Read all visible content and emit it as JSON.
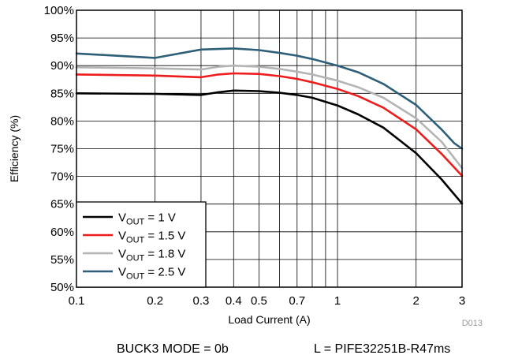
{
  "chart_data": {
    "type": "line",
    "x_scale": "log",
    "xlabel": "Load Current (A)",
    "ylabel": "Efficiency (%)",
    "xlim": [
      0.1,
      3
    ],
    "ylim": [
      50,
      100
    ],
    "x_ticks": [
      0.1,
      0.2,
      0.3,
      0.4,
      0.5,
      0.7,
      1,
      2,
      3
    ],
    "x_tick_labels": [
      "0.1",
      "0.2",
      "0.3",
      "0.4",
      "0.5",
      "0.7",
      "1",
      "2",
      "3"
    ],
    "x_minor_grid": [
      0.6,
      0.8,
      0.9
    ],
    "y_ticks": [
      50,
      55,
      60,
      65,
      70,
      75,
      80,
      85,
      90,
      95,
      100
    ],
    "y_tick_labels": [
      "50%",
      "55%",
      "60%",
      "65%",
      "70%",
      "75%",
      "80%",
      "85%",
      "90%",
      "95%",
      "100%"
    ],
    "grid": true,
    "legend_position": "bottom-left",
    "series": [
      {
        "name_main": "V",
        "name_sub": "OUT",
        "name_rest": " = 1 V",
        "color": "#000000",
        "x": [
          0.1,
          0.2,
          0.3,
          0.35,
          0.4,
          0.5,
          0.6,
          0.7,
          0.8,
          1.0,
          1.2,
          1.5,
          2.0,
          2.5,
          3.0
        ],
        "y": [
          85.0,
          84.9,
          84.7,
          85.2,
          85.5,
          85.4,
          85.1,
          84.7,
          84.2,
          82.8,
          81.2,
          78.8,
          74.2,
          69.5,
          65.1
        ]
      },
      {
        "name_main": "V",
        "name_sub": "OUT",
        "name_rest": " = 1.5 V",
        "color": "#ee1c1c",
        "x": [
          0.1,
          0.2,
          0.3,
          0.35,
          0.4,
          0.5,
          0.6,
          0.7,
          0.8,
          1.0,
          1.2,
          1.5,
          2.0,
          2.5,
          3.0
        ],
        "y": [
          88.4,
          88.2,
          87.9,
          88.4,
          88.6,
          88.5,
          88.1,
          87.6,
          87.0,
          85.8,
          84.5,
          82.4,
          78.5,
          74.1,
          70.1
        ]
      },
      {
        "name_main": "V",
        "name_sub": "OUT",
        "name_rest": " = 1.8 V",
        "color": "#b4b4b4",
        "x": [
          0.1,
          0.2,
          0.3,
          0.35,
          0.4,
          0.5,
          0.6,
          0.7,
          0.8,
          1.0,
          1.2,
          1.5,
          2.0,
          2.5,
          3.0
        ],
        "y": [
          89.7,
          89.5,
          89.3,
          89.8,
          90.0,
          89.8,
          89.4,
          88.9,
          88.4,
          87.3,
          86.1,
          84.2,
          80.5,
          76.3,
          71.5
        ]
      },
      {
        "name_main": "V",
        "name_sub": "OUT",
        "name_rest": " = 2.5 V",
        "color": "#2e5f78",
        "x": [
          0.1,
          0.2,
          0.3,
          0.35,
          0.4,
          0.5,
          0.6,
          0.7,
          0.8,
          1.0,
          1.2,
          1.5,
          2.0,
          2.5,
          2.8,
          3.0
        ],
        "y": [
          92.2,
          91.4,
          92.9,
          93.0,
          93.1,
          92.8,
          92.3,
          91.8,
          91.2,
          90.0,
          88.8,
          86.7,
          82.9,
          78.5,
          76.0,
          75.0
        ]
      }
    ],
    "id_label": "D013",
    "footnote_left": "BUCK3  MODE = 0b",
    "footnote_right": "L = PIFE32251B-R47ms"
  }
}
